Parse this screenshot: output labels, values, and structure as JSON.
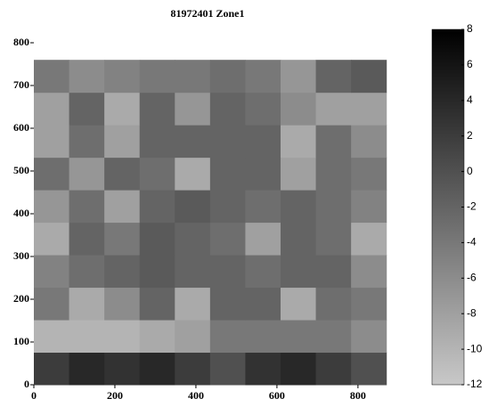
{
  "chart_data": {
    "type": "heatmap",
    "title": "81972401 Zone1",
    "x": [
      0,
      87,
      174,
      261,
      348,
      435,
      522,
      609,
      696,
      783,
      870
    ],
    "y": [
      0,
      76,
      152,
      228,
      304,
      380,
      456,
      532,
      608,
      684,
      760
    ],
    "z": [
      [
        2,
        4,
        3,
        4,
        2,
        0,
        3,
        4,
        2,
        0
      ],
      [
        -10,
        -10,
        -10,
        -9,
        -8,
        -4,
        -4,
        -4,
        -4,
        -6
      ],
      [
        -4,
        -9,
        -6,
        -2,
        -9,
        -2,
        -2,
        -9,
        -3,
        -4
      ],
      [
        -5,
        -3,
        -2,
        -1,
        -2,
        -2,
        -3,
        -2,
        -2,
        -6
      ],
      [
        -9,
        -2,
        -4,
        -1,
        -2,
        -3,
        -8,
        -2,
        -3,
        -9
      ],
      [
        -7,
        -3,
        -8,
        -2,
        -1,
        -2,
        -3,
        -2,
        -3,
        -5
      ],
      [
        -3,
        -7,
        -2,
        -3,
        -9,
        -2,
        -2,
        -8,
        -3,
        -4
      ],
      [
        -8,
        -3,
        -8,
        -2,
        -2,
        -2,
        -2,
        -9,
        -3,
        -6
      ],
      [
        -8,
        -2,
        -9,
        -2,
        -7,
        -2,
        -3,
        -6,
        -8,
        -8
      ],
      [
        -4,
        -6,
        -5,
        -4,
        -4,
        -3,
        -4,
        -7,
        -2,
        -1
      ]
    ],
    "xlim": [
      0,
      875
    ],
    "ylim": [
      0,
      800
    ],
    "xticks": [
      0,
      200,
      400,
      600,
      800
    ],
    "yticks": [
      0,
      100,
      200,
      300,
      400,
      500,
      600,
      700,
      800
    ],
    "clim": [
      -12,
      8
    ],
    "cticks": [
      -12,
      -10,
      -8,
      -6,
      -4,
      -2,
      0,
      2,
      4,
      6,
      8
    ],
    "colormap": [
      "#c8c8c8",
      "#000000"
    ]
  }
}
